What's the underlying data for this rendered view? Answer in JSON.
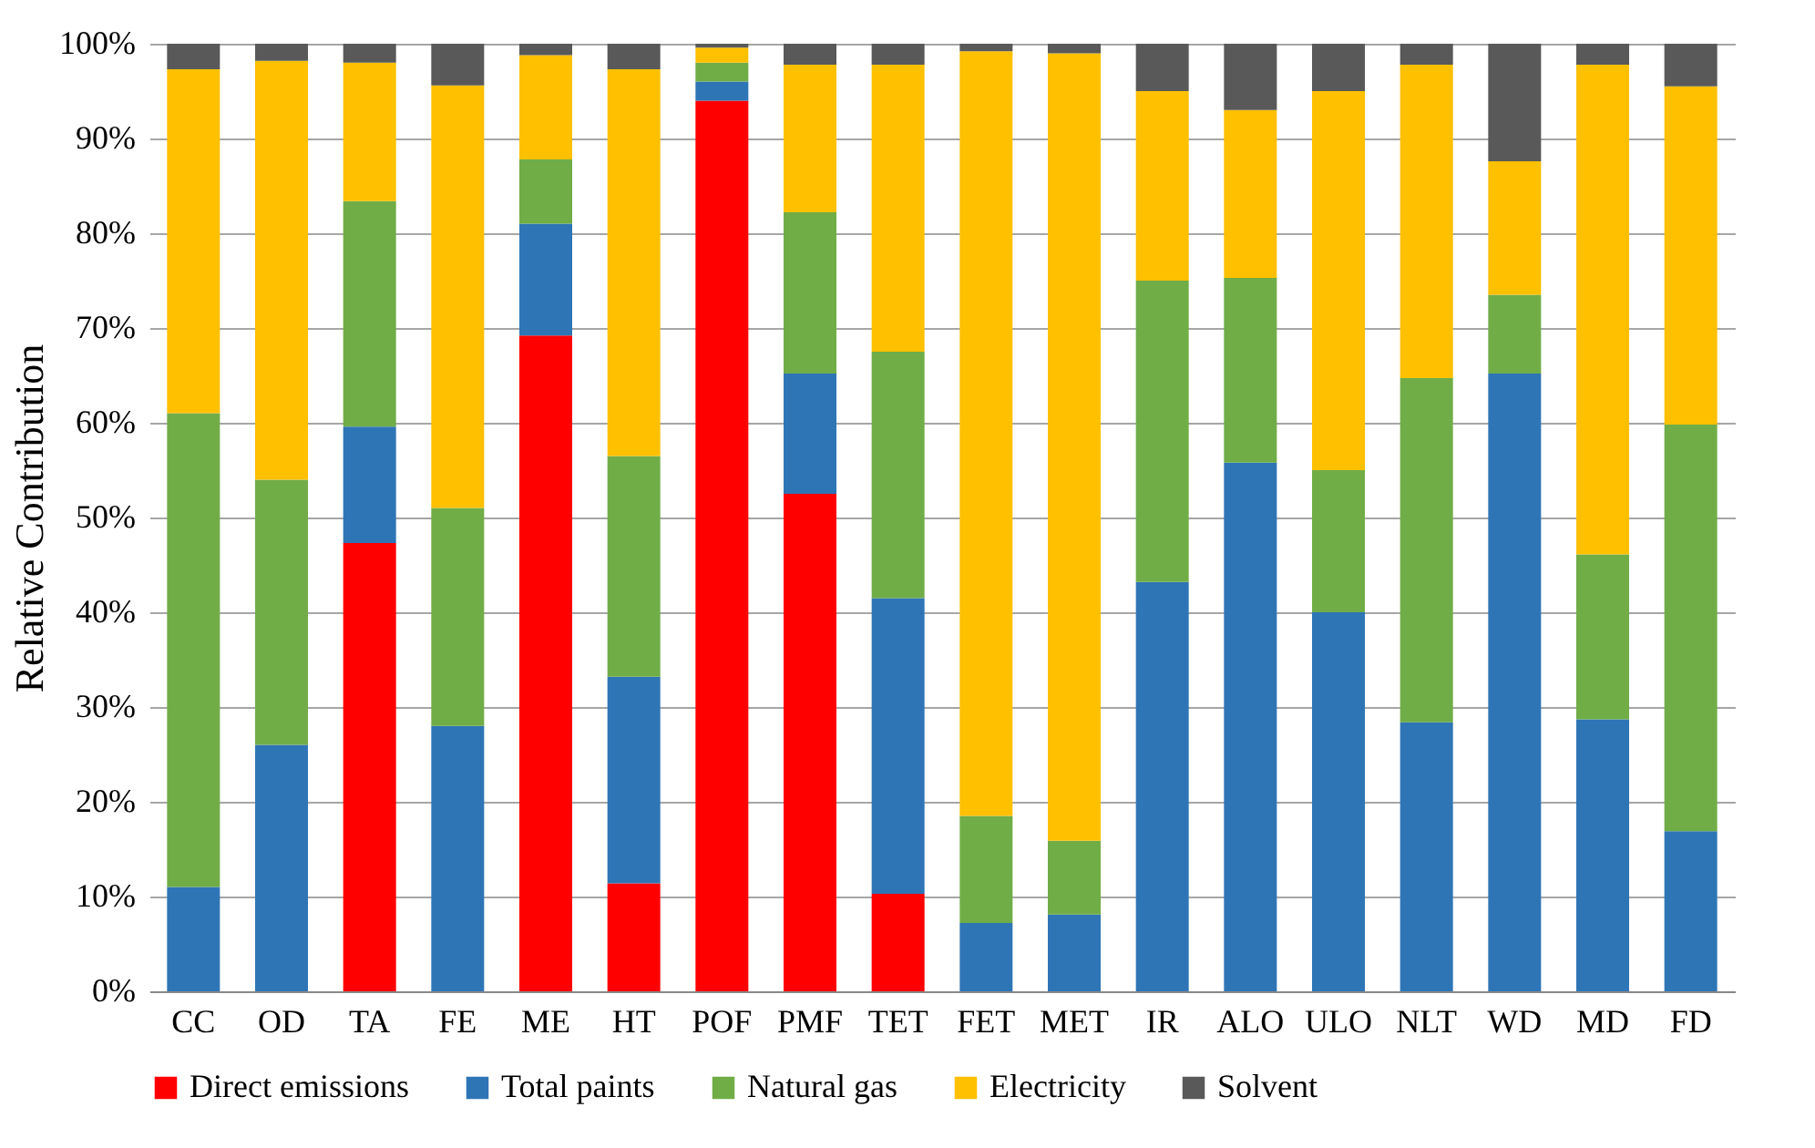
{
  "chart_data": {
    "type": "bar",
    "stacked": true,
    "ylabel": "Relative Contribution",
    "categories": [
      "CC",
      "OD",
      "TA",
      "FE",
      "ME",
      "HT",
      "POF",
      "PMF",
      "TET",
      "FET",
      "MET",
      "IR",
      "ALO",
      "ULO",
      "NLT",
      "WD",
      "MD",
      "FD"
    ],
    "series": [
      {
        "name": "Direct emissions",
        "color": "#ff0000",
        "values": [
          0,
          0,
          47.3,
          0,
          69.2,
          11.4,
          94,
          52.5,
          10.3,
          0,
          0,
          0,
          0,
          0,
          0,
          0,
          0,
          0
        ]
      },
      {
        "name": "Total paints",
        "color": "#2e75b6",
        "values": [
          11,
          26,
          12.3,
          28,
          11.8,
          21.8,
          2,
          12.7,
          31.2,
          7.2,
          8.1,
          43.2,
          55.8,
          40,
          28.4,
          65.2,
          28.7,
          16.9
        ]
      },
      {
        "name": "Natural gas",
        "color": "#70ad47",
        "values": [
          50,
          28,
          23.8,
          23,
          6.8,
          23.3,
          2,
          17,
          26,
          11.3,
          7.8,
          31.8,
          19.5,
          15,
          36.3,
          8.3,
          17.4,
          42.9
        ]
      },
      {
        "name": "Electricity",
        "color": "#ffc000",
        "values": [
          36.3,
          44.2,
          14.6,
          44.6,
          11,
          40.8,
          1.6,
          15.6,
          30.3,
          80.7,
          83.1,
          20,
          17.7,
          40,
          33.1,
          14.1,
          51.7,
          35.7
        ]
      },
      {
        "name": "Solvent",
        "color": "#595959",
        "values": [
          2.7,
          1.8,
          2,
          4.4,
          1.2,
          2.7,
          0.4,
          2.2,
          2.2,
          0.8,
          1,
          5,
          7,
          5,
          2.2,
          12.4,
          2.2,
          4.5
        ]
      }
    ],
    "ylim": [
      0,
      100
    ],
    "yticks": [
      {
        "value": 0,
        "label": "0%"
      },
      {
        "value": 10,
        "label": "10%"
      },
      {
        "value": 20,
        "label": "20%"
      },
      {
        "value": 30,
        "label": "30%"
      },
      {
        "value": 40,
        "label": "40%"
      },
      {
        "value": 50,
        "label": "50%"
      },
      {
        "value": 60,
        "label": "60%"
      },
      {
        "value": 70,
        "label": "70%"
      },
      {
        "value": 80,
        "label": "80%"
      },
      {
        "value": 90,
        "label": "90%"
      },
      {
        "value": 100,
        "label": "100%"
      }
    ],
    "grid": "y",
    "legend": "bottom"
  }
}
